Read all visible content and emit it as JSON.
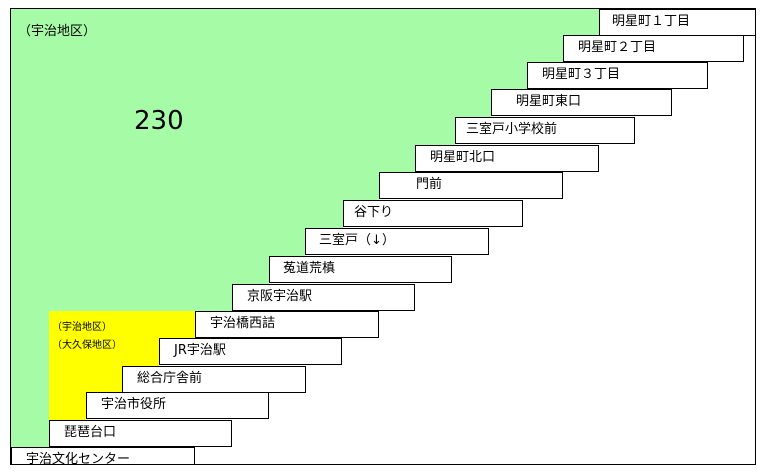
{
  "areas": {
    "uji_top_label": "（宇治地区）",
    "uji_small_label": "（宇治地区）",
    "okubo_small_label": "（大久保地区）"
  },
  "route_number": "230",
  "stops": [
    "明星町１丁目",
    "明星町２丁目",
    "明星町３丁目",
    "明星町東口",
    "三室戸小学校前",
    "明星町北口",
    "門前",
    "谷下り",
    "三室戸（↓）",
    "菟道荒槙",
    "京阪宇治駅",
    "宇治橋西詰",
    "JR宇治駅",
    "総合庁舎前",
    "宇治市役所",
    "琵琶台口",
    "宇治文化センター"
  ],
  "colors": {
    "uji_zone": "#a6fca6",
    "okubo_zone": "#ffff00"
  }
}
